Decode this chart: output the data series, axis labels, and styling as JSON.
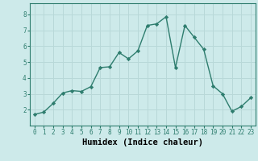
{
  "x": [
    0,
    1,
    2,
    3,
    4,
    5,
    6,
    7,
    8,
    9,
    10,
    11,
    12,
    13,
    14,
    15,
    16,
    17,
    18,
    19,
    20,
    21,
    22,
    23
  ],
  "y": [
    1.7,
    1.85,
    2.4,
    3.05,
    3.2,
    3.15,
    3.45,
    4.65,
    4.7,
    5.6,
    5.2,
    5.7,
    7.3,
    7.4,
    7.85,
    4.65,
    7.3,
    6.55,
    5.8,
    3.5,
    3.0,
    1.9,
    2.2,
    2.75
  ],
  "line_color": "#2e7d6e",
  "marker": "D",
  "marker_size": 2.2,
  "bg_color": "#cdeaea",
  "grid_color": "#b8d8d8",
  "xlabel": "Humidex (Indice chaleur)",
  "xlim": [
    -0.5,
    23.5
  ],
  "ylim": [
    1.0,
    8.7
  ],
  "xticks": [
    0,
    1,
    2,
    3,
    4,
    5,
    6,
    7,
    8,
    9,
    10,
    11,
    12,
    13,
    14,
    15,
    16,
    17,
    18,
    19,
    20,
    21,
    22,
    23
  ],
  "yticks": [
    2,
    3,
    4,
    5,
    6,
    7,
    8
  ],
  "tick_label_fontsize": 5.5,
  "xlabel_fontsize": 7.5,
  "line_width": 1.0,
  "spine_color": "#2e7d6e"
}
